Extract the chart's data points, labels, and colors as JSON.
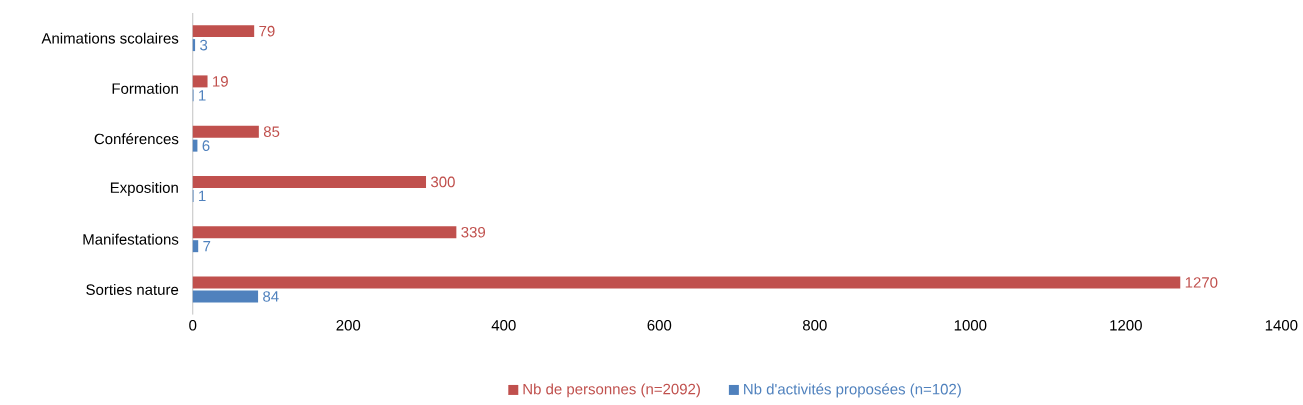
{
  "chart_data": {
    "type": "bar",
    "orientation": "horizontal",
    "categories": [
      "Animations scolaires",
      "Formation",
      "Conférences",
      "Exposition",
      "Manifestations",
      "Sorties nature"
    ],
    "series": [
      {
        "name": "Nb de personnes (n=2092)",
        "color": "#c0504d",
        "values": [
          79,
          19,
          85,
          300,
          339,
          1270
        ]
      },
      {
        "name": "Nb d'activités proposées (n=102)",
        "color": "#4f81bd",
        "values": [
          3,
          1,
          6,
          1,
          7,
          84
        ]
      }
    ],
    "xlim": [
      0,
      1400
    ],
    "xticks": [
      0,
      200,
      400,
      600,
      800,
      1000,
      1200,
      1400
    ],
    "data_labels": true,
    "legend": "bottom"
  }
}
